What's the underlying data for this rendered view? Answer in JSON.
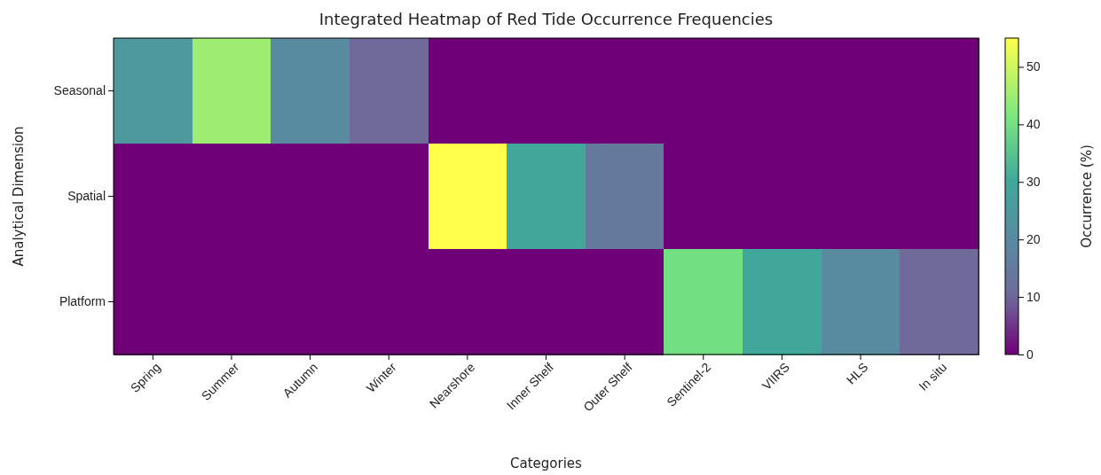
{
  "chart_data": {
    "type": "heatmap",
    "title": "Integrated Heatmap of Red Tide Occurrence Frequencies",
    "xlabel": "Categories",
    "ylabel": "Analytical Dimension",
    "clabel": "Occurrence (%)",
    "categories": [
      "Spring",
      "Summer",
      "Autumn",
      "Winter",
      "Nearshore",
      "Inner Shelf",
      "Outer Shelf",
      "Sentinel-2",
      "VIIRS",
      "HLS",
      "In situ"
    ],
    "y_categories": [
      "Seasonal",
      "Spatial",
      "Platform"
    ],
    "cells": [
      [
        25,
        45,
        20,
        10,
        0,
        0,
        0,
        0,
        0,
        0,
        0
      ],
      [
        0,
        0,
        0,
        0,
        55,
        30,
        15,
        0,
        0,
        0,
        0
      ],
      [
        0,
        0,
        0,
        0,
        0,
        0,
        0,
        40,
        30,
        20,
        10
      ]
    ],
    "clim": [
      0,
      55
    ],
    "cticks": [
      0,
      10,
      20,
      30,
      40,
      50
    ]
  }
}
